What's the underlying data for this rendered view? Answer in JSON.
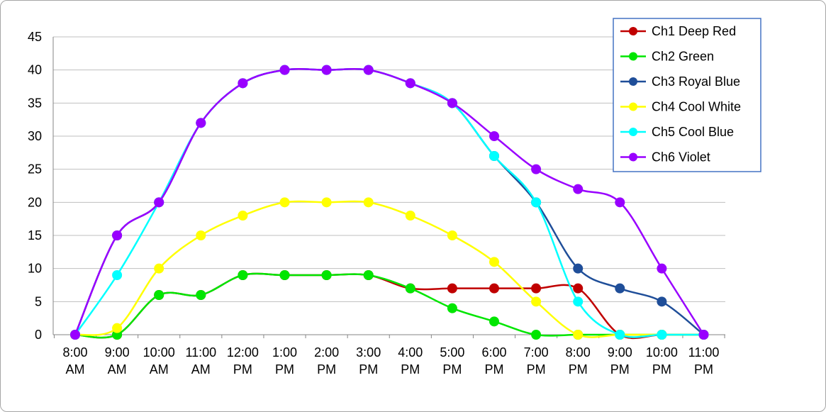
{
  "chart_data": {
    "type": "line",
    "title": "",
    "xlabel": "",
    "ylabel": "",
    "ylim": [
      0,
      45
    ],
    "yticks": [
      0,
      5,
      10,
      15,
      20,
      25,
      30,
      35,
      40,
      45
    ],
    "grid": "horizontal",
    "legend_position": "top-right",
    "categories": [
      [
        "8:00",
        "AM"
      ],
      [
        "9:00",
        "AM"
      ],
      [
        "10:00",
        "AM"
      ],
      [
        "11:00",
        "AM"
      ],
      [
        "12:00",
        "PM"
      ],
      [
        "1:00",
        "PM"
      ],
      [
        "2:00",
        "PM"
      ],
      [
        "3:00",
        "PM"
      ],
      [
        "4:00",
        "PM"
      ],
      [
        "5:00",
        "PM"
      ],
      [
        "6:00",
        "PM"
      ],
      [
        "7:00",
        "PM"
      ],
      [
        "8:00",
        "PM"
      ],
      [
        "9:00",
        "PM"
      ],
      [
        "10:00",
        "PM"
      ],
      [
        "11:00",
        "PM"
      ]
    ],
    "series": [
      {
        "name": "Ch1 Deep Red",
        "color": "#c00000",
        "values": [
          0,
          0,
          6,
          6,
          9,
          9,
          9,
          9,
          7,
          7,
          7,
          7,
          7,
          0,
          0,
          0
        ]
      },
      {
        "name": "Ch2 Green",
        "color": "#00e600",
        "values": [
          0,
          0,
          6,
          6,
          9,
          9,
          9,
          9,
          7,
          4,
          2,
          0,
          0,
          0,
          0,
          0
        ]
      },
      {
        "name": "Ch3 Royal Blue",
        "color": "#1f4e99",
        "values": [
          0,
          15,
          20,
          32,
          38,
          40,
          40,
          40,
          38,
          35,
          27,
          20,
          10,
          7,
          5,
          0
        ]
      },
      {
        "name": "Ch4 Cool White",
        "color": "#ffff00",
        "values": [
          0,
          1,
          10,
          15,
          18,
          20,
          20,
          20,
          18,
          15,
          11,
          5,
          0,
          0,
          0,
          0
        ]
      },
      {
        "name": "Ch5 Cool Blue",
        "color": "#00ffff",
        "values": [
          0,
          9,
          20,
          32,
          38,
          40,
          40,
          40,
          38,
          35,
          27,
          20,
          5,
          0,
          0,
          0
        ]
      },
      {
        "name": "Ch6 Violet",
        "color": "#9900ff",
        "values": [
          0,
          15,
          20,
          32,
          38,
          40,
          40,
          40,
          38,
          35,
          30,
          25,
          22,
          20,
          10,
          0
        ]
      }
    ]
  }
}
